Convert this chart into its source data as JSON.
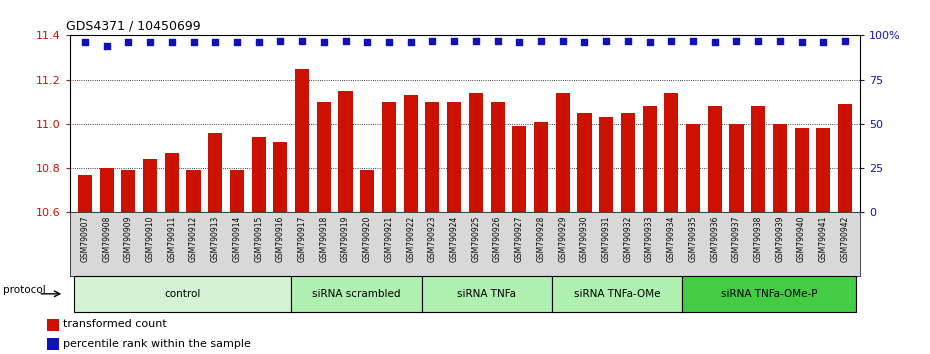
{
  "title": "GDS4371 / 10450699",
  "samples": [
    "GSM790907",
    "GSM790908",
    "GSM790909",
    "GSM790910",
    "GSM790911",
    "GSM790912",
    "GSM790913",
    "GSM790914",
    "GSM790915",
    "GSM790916",
    "GSM790917",
    "GSM790918",
    "GSM790919",
    "GSM790920",
    "GSM790921",
    "GSM790922",
    "GSM790923",
    "GSM790924",
    "GSM790925",
    "GSM790926",
    "GSM790927",
    "GSM790928",
    "GSM790929",
    "GSM790930",
    "GSM790931",
    "GSM790932",
    "GSM790933",
    "GSM790934",
    "GSM790935",
    "GSM790936",
    "GSM790937",
    "GSM790938",
    "GSM790939",
    "GSM790940",
    "GSM790941",
    "GSM790942"
  ],
  "bar_values": [
    10.77,
    10.8,
    10.79,
    10.84,
    10.87,
    10.79,
    10.96,
    10.79,
    10.94,
    10.92,
    11.25,
    11.1,
    11.15,
    10.79,
    11.1,
    11.13,
    11.1,
    11.1,
    11.14,
    11.1,
    10.99,
    11.01,
    11.14,
    11.05,
    11.03,
    11.05,
    11.08,
    11.14,
    11.0,
    11.08,
    11.0,
    11.08,
    11.0,
    10.98,
    10.98,
    11.09
  ],
  "percentile_values": [
    96,
    94,
    96,
    96,
    96,
    96,
    96,
    96,
    96,
    97,
    97,
    96,
    97,
    96,
    96,
    96,
    97,
    97,
    97,
    97,
    96,
    97,
    97,
    96,
    97,
    97,
    96,
    97,
    97,
    96,
    97,
    97,
    97,
    96,
    96,
    97
  ],
  "bar_color": "#cc1100",
  "percentile_color": "#1111bb",
  "ylim_left": [
    10.6,
    11.4
  ],
  "ylim_right": [
    0,
    100
  ],
  "yticks_left": [
    10.6,
    10.8,
    11.0,
    11.2,
    11.4
  ],
  "yticks_right": [
    0,
    25,
    50,
    75,
    100
  ],
  "groups": [
    {
      "label": "control",
      "start": 0,
      "end": 9,
      "color": "#d4f2d4"
    },
    {
      "label": "siRNA scrambled",
      "start": 10,
      "end": 15,
      "color": "#b0f0b0"
    },
    {
      "label": "siRNA TNFa",
      "start": 16,
      "end": 21,
      "color": "#b0f0b0"
    },
    {
      "label": "siRNA TNFa-OMe",
      "start": 22,
      "end": 27,
      "color": "#b0f0b0"
    },
    {
      "label": "siRNA TNFa-OMe-P",
      "start": 28,
      "end": 35,
      "color": "#44cc44"
    }
  ],
  "legend_items": [
    {
      "label": "transformed count",
      "color": "#cc1100"
    },
    {
      "label": "percentile rank within the sample",
      "color": "#1111bb"
    }
  ],
  "protocol_label": "protocol",
  "background_color": "#ffffff"
}
